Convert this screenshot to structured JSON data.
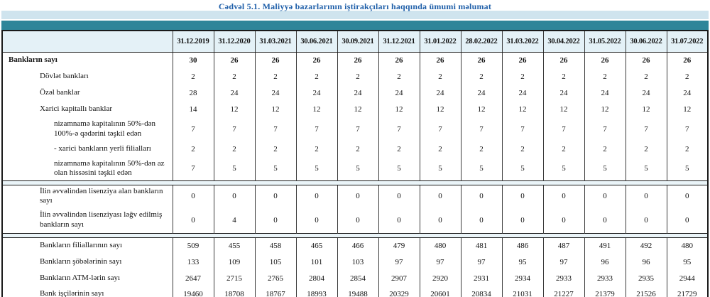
{
  "title": "Cədvəl 5.1. Maliyyə bazarlarının iştirakçıları haqqında ümumi məlumat",
  "colors": {
    "title_text": "#1f5fa9",
    "top_bar_light": "#cfe4ee",
    "top_bar_teal": "#2e8599",
    "header_background": "#e4f1f7",
    "separator_background": "#eaf4f8"
  },
  "chart_data": {
    "type": "table",
    "title": "Cədvəl 5.1. Maliyyə bazarlarının iştirakçıları haqqında ümumi məlumat",
    "columns": [
      "31.12.2019",
      "31.12.2020",
      "31.03.2021",
      "30.06.2021",
      "30.09.2021",
      "31.12.2021",
      "31.01.2022",
      "28.02.2022",
      "31.03.2022",
      "30.04.2022",
      "31.05.2022",
      "30.06.2022",
      "31.07.2022"
    ],
    "corner_label": "",
    "sections": [
      {
        "rows": [
          {
            "label": "Bankların sayı",
            "indent": 0,
            "bold": true,
            "size": "single",
            "values": [
              "30",
              "26",
              "26",
              "26",
              "26",
              "26",
              "26",
              "26",
              "26",
              "26",
              "26",
              "26",
              "26"
            ]
          },
          {
            "label": "Dövlət bankları",
            "indent": 1,
            "bold": false,
            "size": "single",
            "values": [
              "2",
              "2",
              "2",
              "2",
              "2",
              "2",
              "2",
              "2",
              "2",
              "2",
              "2",
              "2",
              "2"
            ]
          },
          {
            "label": "Özəl banklar",
            "indent": 1,
            "bold": false,
            "size": "single",
            "values": [
              "28",
              "24",
              "24",
              "24",
              "24",
              "24",
              "24",
              "24",
              "24",
              "24",
              "24",
              "24",
              "24"
            ]
          },
          {
            "label": "Xarici kapitallı banklar",
            "indent": 1,
            "bold": false,
            "size": "single",
            "values": [
              "14",
              "12",
              "12",
              "12",
              "12",
              "12",
              "12",
              "12",
              "12",
              "12",
              "12",
              "12",
              "12"
            ]
          },
          {
            "label": "nizamnamə kapitalının 50%-dən 100%-ə qədərini təşkil edən",
            "indent": 2,
            "bold": false,
            "size": "tall",
            "values": [
              "7",
              "7",
              "7",
              "7",
              "7",
              "7",
              "7",
              "7",
              "7",
              "7",
              "7",
              "7",
              "7"
            ]
          },
          {
            "label": "-  xarici bankların yerli filialları",
            "indent": 2,
            "bold": false,
            "size": "single",
            "values": [
              "2",
              "2",
              "2",
              "2",
              "2",
              "2",
              "2",
              "2",
              "2",
              "2",
              "2",
              "2",
              "2"
            ]
          },
          {
            "label": "nizamnamə kapitalının 50%-dən az olan hissəsini  təşkil edən",
            "indent": 2,
            "bold": false,
            "size": "tall",
            "values": [
              "7",
              "5",
              "5",
              "5",
              "5",
              "5",
              "5",
              "5",
              "5",
              "5",
              "5",
              "5",
              "5"
            ]
          }
        ]
      },
      {
        "rows": [
          {
            "label": "İlin əvvəlindən lisenziya alan bankların sayı",
            "indent": 1,
            "bold": false,
            "size": "single",
            "values": [
              "0",
              "0",
              "0",
              "0",
              "0",
              "0",
              "0",
              "0",
              "0",
              "0",
              "0",
              "0",
              "0"
            ]
          },
          {
            "label": "İlin əvvəlindən lisenziyası ləğv edilmiş bankların sayı",
            "indent": 1,
            "bold": false,
            "size": "taller",
            "values": [
              "0",
              "4",
              "0",
              "0",
              "0",
              "0",
              "0",
              "0",
              "0",
              "0",
              "0",
              "0",
              "0"
            ]
          }
        ]
      },
      {
        "rows": [
          {
            "label": "Bankların filiallarının sayı",
            "indent": 1,
            "bold": false,
            "size": "single",
            "values": [
              "509",
              "455",
              "458",
              "465",
              "466",
              "479",
              "480",
              "481",
              "486",
              "487",
              "491",
              "492",
              "480"
            ]
          },
          {
            "label": "Bankların şöbələrinin sayı",
            "indent": 1,
            "bold": false,
            "size": "single",
            "values": [
              "133",
              "109",
              "105",
              "101",
              "103",
              "97",
              "97",
              "97",
              "95",
              "97",
              "96",
              "96",
              "95"
            ]
          },
          {
            "label": "Bankların ATM-lərin sayı",
            "indent": 1,
            "bold": false,
            "size": "single",
            "values": [
              "2647",
              "2715",
              "2765",
              "2804",
              "2854",
              "2907",
              "2920",
              "2931",
              "2934",
              "2933",
              "2933",
              "2935",
              "2944"
            ]
          },
          {
            "label": "Bank işçilərinin sayı",
            "indent": 1,
            "bold": false,
            "size": "single",
            "values": [
              "19460",
              "18708",
              "18767",
              "18993",
              "19488",
              "20329",
              "20601",
              "20834",
              "21031",
              "21227",
              "21379",
              "21526",
              "21729"
            ]
          }
        ]
      }
    ]
  }
}
